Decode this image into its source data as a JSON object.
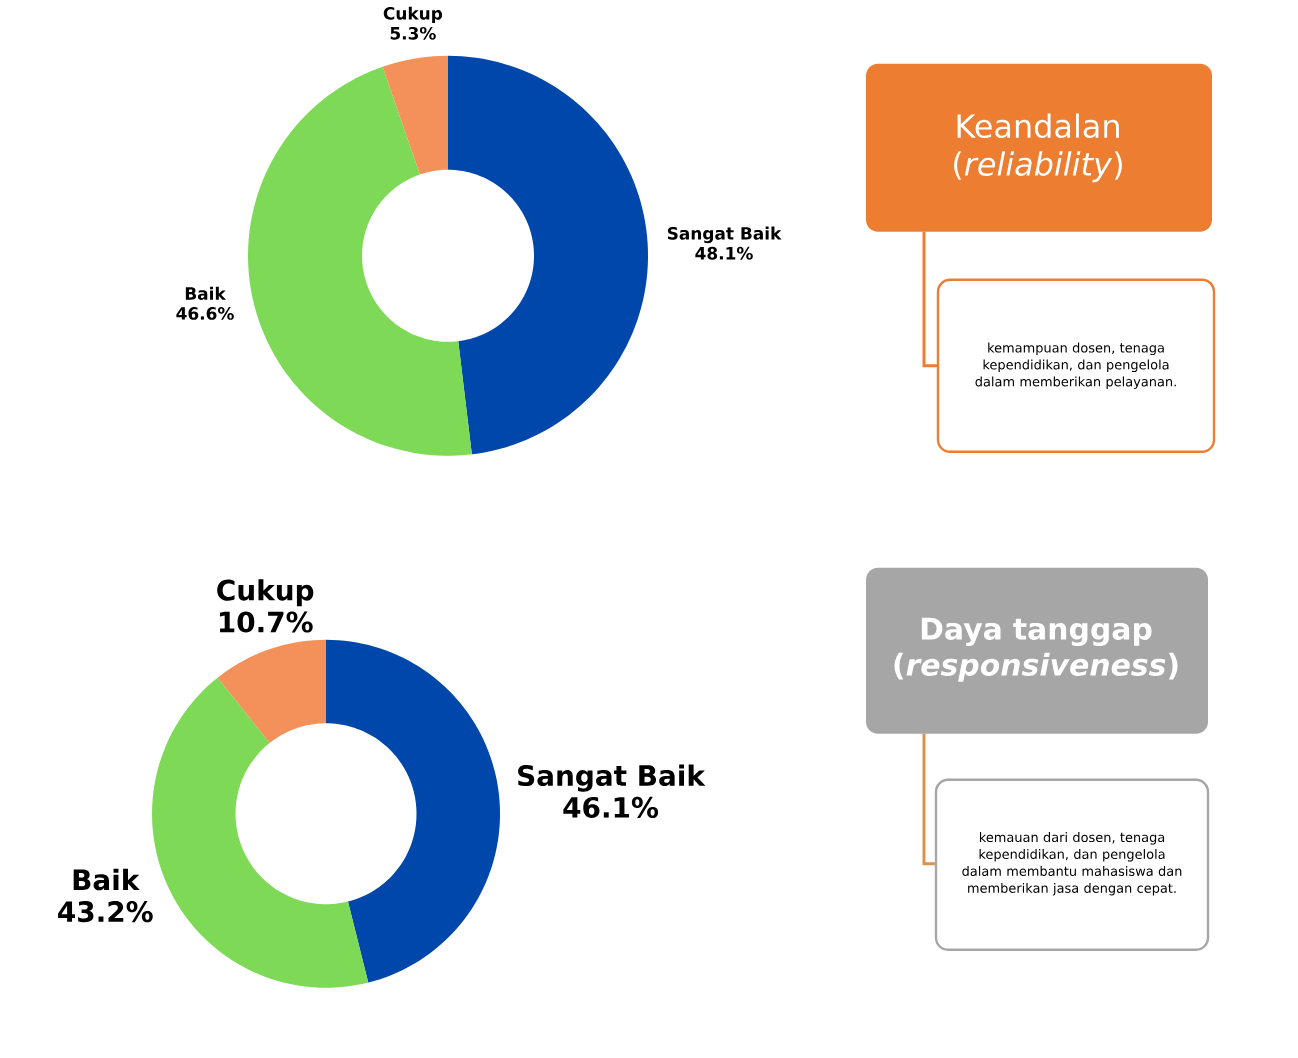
{
  "chart_data": [
    {
      "type": "donut",
      "categories": [
        "Sangat Baik",
        "Baik",
        "Cukup"
      ],
      "values": [
        48.1,
        46.6,
        5.3
      ],
      "value_labels": [
        "48.1%",
        "46.6%",
        "5.3%"
      ],
      "colors": [
        "#0047ab",
        "#7ed957",
        "#f4915a"
      ]
    },
    {
      "type": "other",
      "title": "Keandalan (*reliability*)",
      "annotations": [
        "kemampuan dosen, tenaga kependidikan, dan pengelola dalam memberikan pelayanan."
      ]
    },
    {
      "type": "donut",
      "categories": [
        "Sangat Baik",
        "Baik",
        "Cukup"
      ],
      "values": [
        46.1,
        43.2,
        10.7
      ],
      "value_labels": [
        "46.1%",
        "43.2%",
        "10.7%"
      ],
      "colors": [
        "#0047ab",
        "#7ed957",
        "#f4915a"
      ]
    },
    {
      "type": "other",
      "title": "Daya tanggap (*responsiveness*)",
      "annotations": [
        "kemauan dari dosen, tenaga kependidikan, dan pengelola dalam membantu mahasiswa dan memberikan jasa dengan cepat."
      ]
    }
  ]
}
